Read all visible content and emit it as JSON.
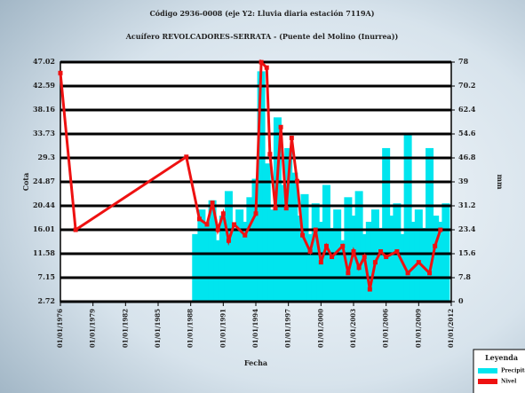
{
  "chart_data": {
    "type": "bar-line",
    "title": "Código 2936-0008 (eje Y2: Lluvia diaria estación 7119A)",
    "subtitle": "Acuífero REVOLCADORES-SERRATA - (Puente del Molino (Inurrea))",
    "x_label": "Fecha",
    "y_label": "Cota",
    "y2_label": "mm",
    "legend_title": "Leyenda",
    "legend": "bottom right",
    "grid": true,
    "xlim": [
      1976,
      2012
    ],
    "xticks": [
      {
        "value": 1976,
        "label": "01/01/1976"
      },
      {
        "value": 1979,
        "label": "01/01/1979"
      },
      {
        "value": 1982,
        "label": "01/01/1982"
      },
      {
        "value": 1985,
        "label": "01/01/1985"
      },
      {
        "value": 1988,
        "label": "01/01/1988"
      },
      {
        "value": 1991,
        "label": "01/01/1991"
      },
      {
        "value": 1994,
        "label": "01/01/1994"
      },
      {
        "value": 1997,
        "label": "01/01/1997"
      },
      {
        "value": 2000,
        "label": "01/01/2000"
      },
      {
        "value": 2003,
        "label": "01/01/2003"
      },
      {
        "value": 2006,
        "label": "01/01/2006"
      },
      {
        "value": 2009,
        "label": "01/01/2009"
      },
      {
        "value": 2012,
        "label": "01/01/2012"
      }
    ],
    "ylim": [
      2.72,
      47.02
    ],
    "yticks": [
      2.72,
      7.15,
      11.58,
      16.01,
      20.44,
      24.87,
      29.3,
      33.73,
      38.16,
      42.59,
      47.02
    ],
    "y2lim": [
      0,
      78
    ],
    "y2ticks": [
      0,
      7.8,
      15.6,
      23.4,
      31.2,
      39,
      46.8,
      54.6,
      62.4,
      70.2,
      78
    ],
    "series": [
      {
        "name": "Precipitación",
        "type": "bar",
        "axis": "y2",
        "color": "#00e5ee",
        "x": [
          1988.5,
          1989,
          1989.5,
          1990,
          1990.5,
          1991,
          1991.5,
          1992,
          1992.5,
          1993,
          1993.5,
          1994,
          1994.5,
          1995,
          1995.5,
          1996,
          1996.5,
          1997,
          1997.5,
          1998,
          1998.5,
          1999,
          1999.5,
          2000,
          2000.5,
          2001,
          2001.5,
          2002,
          2002.5,
          2003,
          2003.5,
          2004,
          2004.5,
          2005,
          2005.5,
          2006,
          2006.5,
          2007,
          2007.5,
          2008,
          2008.5,
          2009,
          2009.5,
          2010,
          2010.5,
          2011,
          2011.5
        ],
        "values": [
          22,
          30,
          25,
          33,
          20,
          28,
          36,
          24,
          30,
          26,
          34,
          40,
          75,
          45,
          30,
          60,
          38,
          50,
          42,
          28,
          35,
          22,
          32,
          26,
          38,
          24,
          30,
          20,
          34,
          28,
          36,
          22,
          26,
          30,
          24,
          50,
          28,
          32,
          22,
          55,
          26,
          30,
          24,
          50,
          28,
          26,
          32
        ]
      },
      {
        "name": "Nivel",
        "type": "line",
        "axis": "y",
        "color": "#ee1111",
        "x": [
          1976,
          1977.4,
          1987.6,
          1988.8,
          1989.5,
          1990,
          1990.5,
          1991,
          1991.5,
          1992,
          1993,
          1994,
          1994.5,
          1995,
          1995.3,
          1995.8,
          1996.3,
          1996.8,
          1997.3,
          1997.8,
          1998.3,
          1999,
          1999.5,
          2000,
          2000.5,
          2001,
          2002,
          2002.5,
          2003,
          2003.5,
          2004,
          2004.5,
          2005,
          2005.5,
          2006,
          2007,
          2008,
          2009,
          2010,
          2010.5,
          2011
        ],
        "values": [
          45,
          16,
          29.5,
          18,
          17,
          21,
          16,
          19,
          14,
          17,
          15,
          19,
          47,
          46,
          30,
          20,
          35,
          20,
          33,
          25,
          15,
          12,
          16,
          10,
          13,
          11,
          13,
          8,
          12,
          9,
          11,
          5,
          10,
          12,
          11,
          12,
          8,
          10,
          8,
          13,
          16
        ]
      }
    ]
  }
}
